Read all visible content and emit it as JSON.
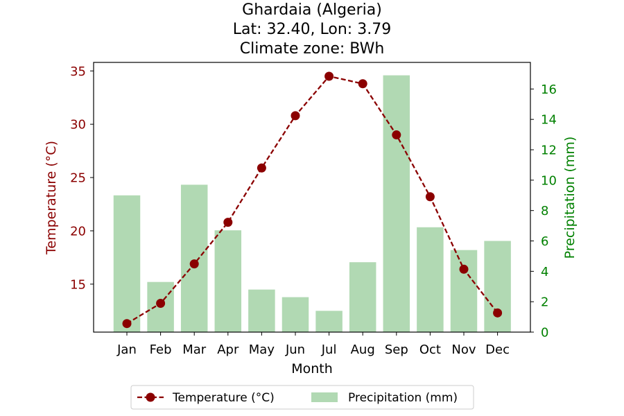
{
  "chart_data": {
    "type": "bar+line",
    "title_lines": [
      "Ghardaia (Algeria)",
      "Lat: 32.40, Lon: 3.79",
      "Climate zone: BWh"
    ],
    "categories": [
      "Jan",
      "Feb",
      "Mar",
      "Apr",
      "May",
      "Jun",
      "Jul",
      "Aug",
      "Sep",
      "Oct",
      "Nov",
      "Dec"
    ],
    "xlabel": "Month",
    "temperature": {
      "name": "Temperature (°C)",
      "axis_label": "Temperature (°C)",
      "values": [
        11.3,
        13.2,
        16.9,
        20.8,
        25.9,
        30.8,
        34.5,
        33.8,
        29.0,
        23.2,
        16.4,
        12.3
      ],
      "ylim": [
        10.5,
        35.8
      ],
      "ticks": [
        15,
        20,
        25,
        30,
        35
      ],
      "color": "#8b0000"
    },
    "precipitation": {
      "name": "Precipitation (mm)",
      "axis_label": "Precipitation (mm)",
      "values": [
        9.0,
        3.3,
        9.7,
        6.7,
        2.8,
        2.3,
        1.4,
        4.6,
        16.9,
        6.9,
        5.4,
        6.0
      ],
      "ylim": [
        0,
        17.75
      ],
      "ticks": [
        0,
        2,
        4,
        6,
        8,
        10,
        12,
        14,
        16
      ],
      "color": "#b1d9b3",
      "axis_color": "#008000"
    },
    "legend": {
      "placement": "bottom-center"
    }
  }
}
